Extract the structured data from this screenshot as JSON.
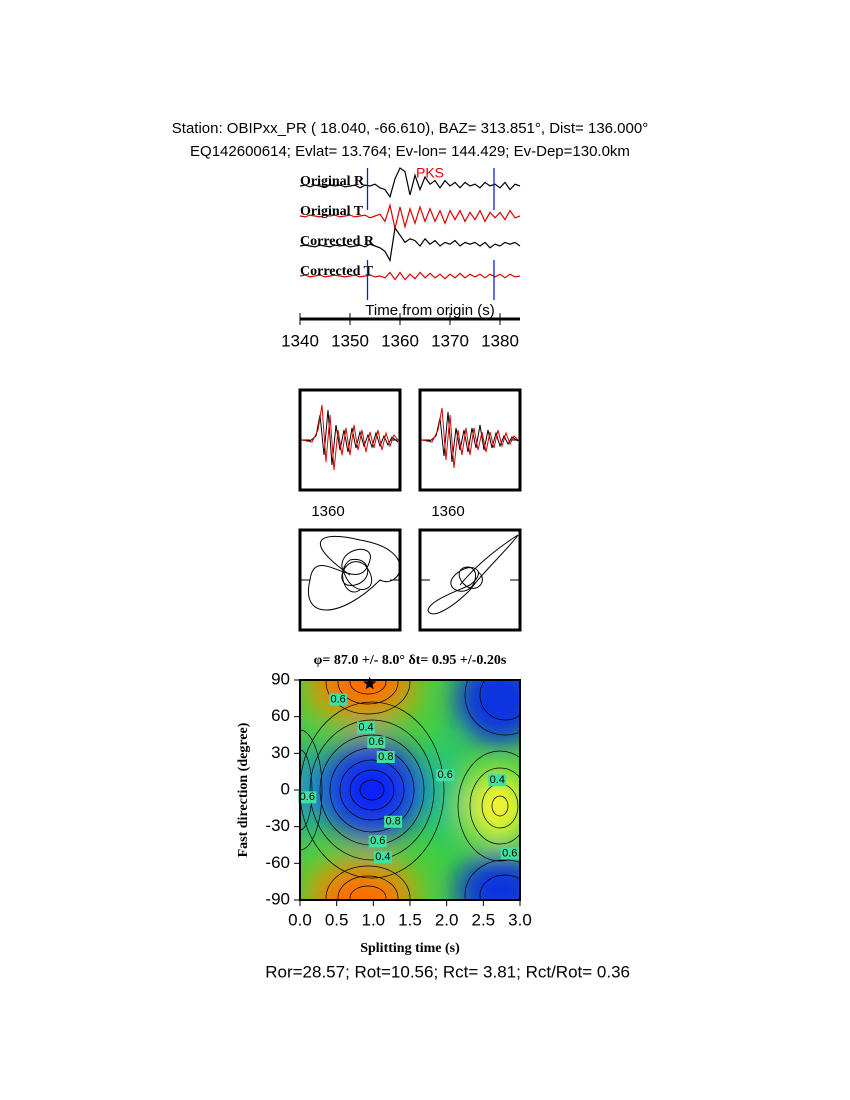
{
  "header": {
    "line1": "Station: OBIPxx_PR (  18.040,  -66.610), BAZ=  313.851°, Dist=  136.000°",
    "line2": "EQ142600614; Evlat=  13.764; Ev-lon= 144.429; Ev-Dep=130.0km"
  },
  "chart_data": [
    {
      "type": "line",
      "xlabel": "Time from origin (s)",
      "phase": {
        "label": "PKS",
        "time": 1366
      },
      "window": [
        1353.5,
        1378.8
      ],
      "xlim": [
        1340,
        1384
      ],
      "xticks": [
        1340,
        1350,
        1360,
        1370,
        1380
      ],
      "x": [
        1340,
        1341,
        1342,
        1343,
        1344,
        1345,
        1346,
        1347,
        1348,
        1349,
        1350,
        1351,
        1352,
        1353,
        1354,
        1355,
        1356,
        1357,
        1358,
        1359,
        1360,
        1361,
        1362,
        1363,
        1364,
        1365,
        1366,
        1367,
        1368,
        1369,
        1370,
        1371,
        1372,
        1373,
        1374,
        1375,
        1376,
        1377,
        1378,
        1379,
        1380,
        1381,
        1382,
        1383,
        1384
      ],
      "series": [
        {
          "name": "Original R",
          "color": "#000000",
          "values": [
            0,
            0.05,
            -0.05,
            0.05,
            0,
            -0.05,
            0.05,
            0,
            0.05,
            -0.05,
            0,
            0.05,
            -0.1,
            0.05,
            0,
            0.1,
            -0.1,
            -0.2,
            -0.6,
            0.4,
            1.0,
            0.8,
            -0.5,
            0.6,
            -0.2,
            0.5,
            0.1,
            0.3,
            -0.1,
            0.3,
            0,
            0.2,
            -0.1,
            0.2,
            0,
            0.1,
            -0.1,
            0.2,
            0,
            0.1,
            -0.1,
            0.2,
            -0.2,
            0.1,
            0
          ]
        },
        {
          "name": "Original T",
          "color": "#e00000",
          "values": [
            0,
            -0.05,
            0.05,
            0,
            -0.05,
            0.05,
            0,
            0.05,
            -0.05,
            0,
            0.05,
            -0.05,
            0,
            0.05,
            -0.1,
            0,
            0.1,
            -0.3,
            0.6,
            -0.7,
            0.5,
            -0.6,
            0.4,
            -0.4,
            0.5,
            -0.3,
            0.4,
            -0.3,
            0.3,
            -0.4,
            0.3,
            -0.2,
            0.3,
            -0.3,
            0.2,
            -0.2,
            0.3,
            -0.3,
            0.2,
            -0.1,
            0.2,
            -0.2,
            0.3,
            -0.1,
            0
          ]
        },
        {
          "name": "Corrected R",
          "color": "#000000",
          "values": [
            0,
            0.05,
            0,
            -0.05,
            0.05,
            0,
            -0.05,
            0.05,
            0,
            0.05,
            -0.05,
            0,
            0.05,
            -0.05,
            0.1,
            0,
            -0.1,
            -0.3,
            -0.8,
            1.0,
            0.6,
            0.2,
            0.4,
            0.3,
            0,
            0.4,
            0.1,
            0.3,
            0,
            0.2,
            0.1,
            0.3,
            0,
            0.2,
            0.1,
            0.2,
            0,
            0.2,
            -0.1,
            0.1,
            0,
            0.2,
            0.1,
            0.2,
            0
          ]
        },
        {
          "name": "Corrected T",
          "color": "#e00000",
          "values": [
            0,
            0.05,
            -0.05,
            0,
            0.05,
            -0.05,
            0,
            0.05,
            0,
            -0.05,
            0,
            0.05,
            -0.05,
            0,
            0.05,
            -0.05,
            0,
            -0.1,
            0.2,
            -0.2,
            0.2,
            -0.2,
            0.1,
            -0.15,
            0.2,
            -0.1,
            0.15,
            -0.1,
            0.1,
            -0.15,
            0.1,
            -0.1,
            0.15,
            -0.1,
            0.1,
            -0.05,
            0.1,
            -0.1,
            0.1,
            -0.05,
            0.1,
            -0.1,
            0.1,
            -0.05,
            0
          ]
        }
      ]
    },
    {
      "type": "contour",
      "title": "φ= 87.0 +/- 8.0° δt= 0.95 +/-0.20s",
      "xlabel": "Splitting time (s)",
      "ylabel": "Fast direction (degree)",
      "xlim": [
        0,
        3
      ],
      "ylim": [
        -90,
        90
      ],
      "xticks": [
        {
          "value": 0,
          "label": "0.0"
        },
        0.5,
        {
          "value": 1,
          "label": "1.0"
        },
        1.5,
        {
          "value": 2,
          "label": "2.0"
        },
        2.5,
        {
          "value": 3,
          "label": "3.0"
        }
      ],
      "yticks": [
        -90,
        -60,
        -30,
        0,
        30,
        60,
        90
      ],
      "best": {
        "x": 0.95,
        "y": 87
      },
      "contour_labels": [
        {
          "x": 0.9,
          "y": 51,
          "label": "0.4"
        },
        {
          "x": 1.04,
          "y": 39,
          "label": "0.6"
        },
        {
          "x": 1.17,
          "y": 27,
          "label": "0.8"
        },
        {
          "x": 1.98,
          "y": 12,
          "label": "0.6"
        },
        {
          "x": 2.69,
          "y": 8,
          "label": "0.4"
        },
        {
          "x": 2.86,
          "y": -52,
          "label": "0.6"
        },
        {
          "x": 1.27,
          "y": -26,
          "label": "0.8"
        },
        {
          "x": 1.06,
          "y": -42,
          "label": "0.6"
        },
        {
          "x": 1.13,
          "y": -55,
          "label": "0.4"
        },
        {
          "x": 0.1,
          "y": -6,
          "label": "0.6"
        },
        {
          "x": 0.52,
          "y": 74,
          "label": "0.6"
        }
      ]
    }
  ],
  "panels": {
    "xtick_label": "1360"
  },
  "footer": "Ror=28.57; Rot=10.56; Rct= 3.81; Rct/Rot= 0.36"
}
